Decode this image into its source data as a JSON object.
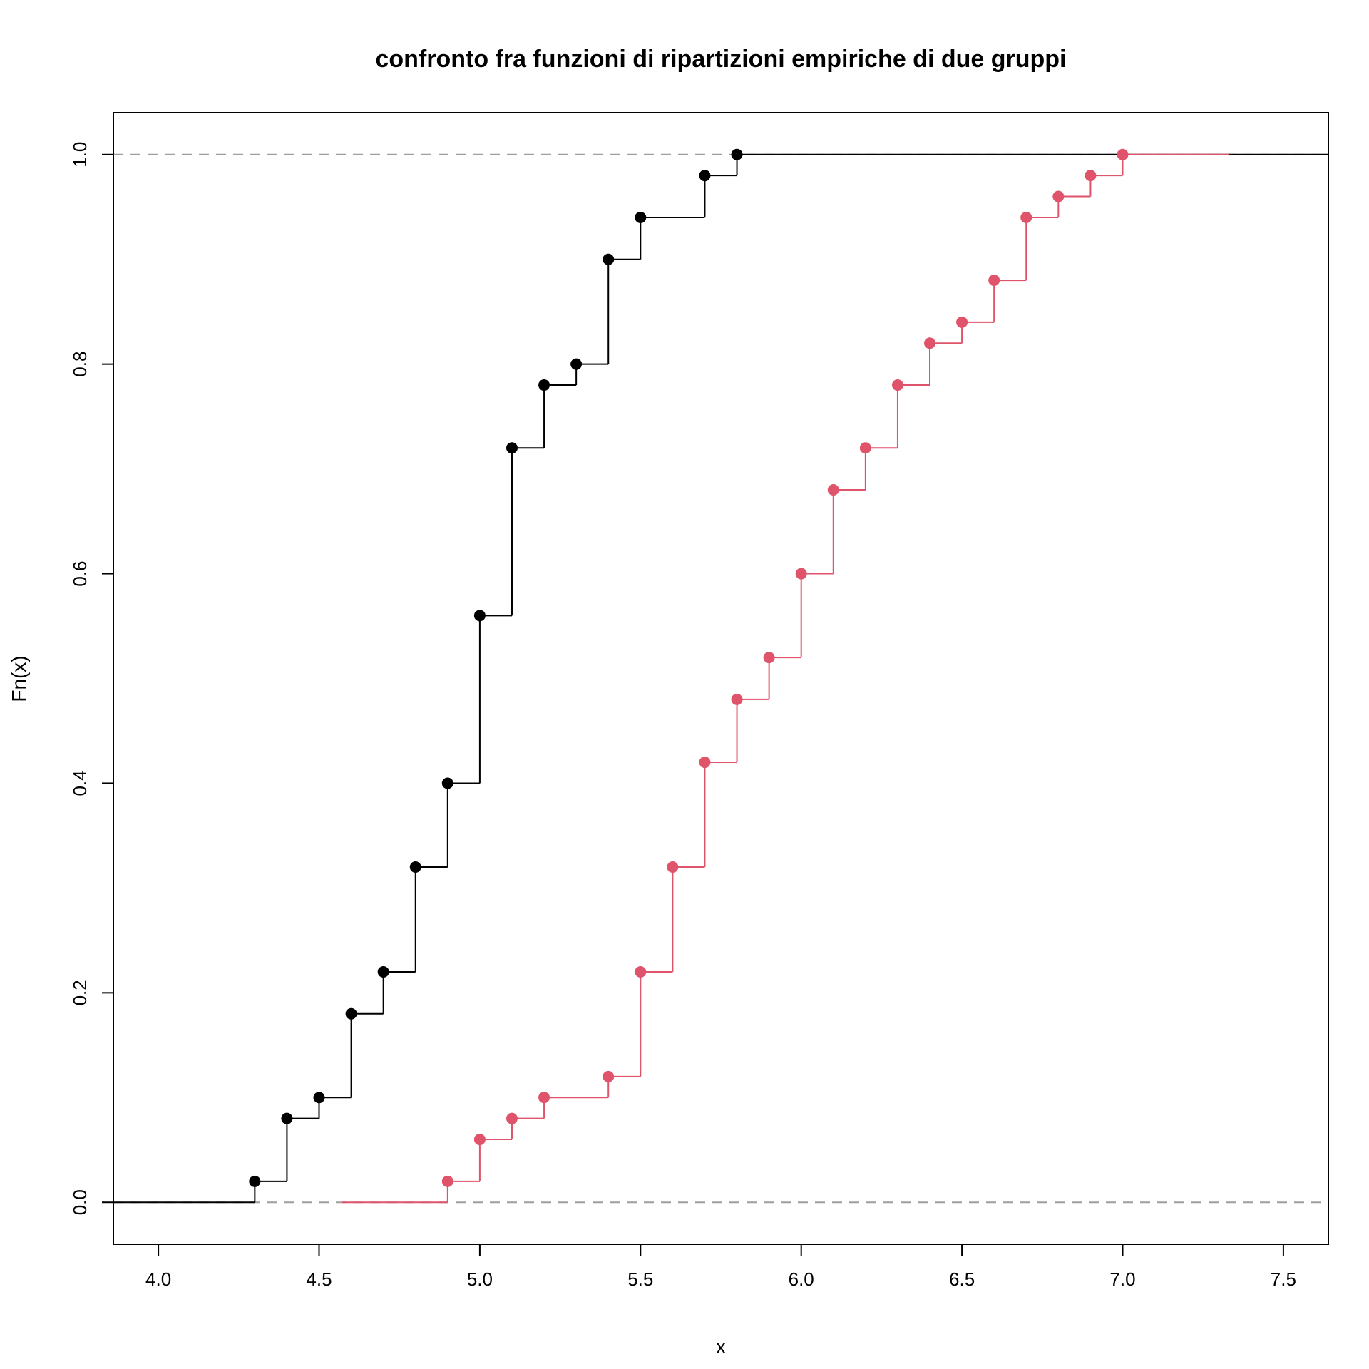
{
  "chart_data": {
    "type": "line",
    "subtype": "empirical-cdf-step",
    "title": "confronto fra funzioni di ripartizioni empiriche di due gruppi",
    "xlabel": "x",
    "ylabel": "Fn(x)",
    "xlim": [
      3.86,
      7.64
    ],
    "ylim": [
      -0.04,
      1.04
    ],
    "x_ticks": [
      "4.0",
      "4.5",
      "5.0",
      "5.5",
      "6.0",
      "6.5",
      "7.0",
      "7.5"
    ],
    "y_ticks": [
      "0.0",
      "0.2",
      "0.4",
      "0.6",
      "0.8",
      "1.0"
    ],
    "reference_lines": [
      0,
      1
    ],
    "grid": false,
    "legend": "none",
    "series": [
      {
        "color": "#000000",
        "x_start": 3.86,
        "x_end": 7.64,
        "x": [
          4.3,
          4.4,
          4.5,
          4.6,
          4.7,
          4.8,
          4.9,
          5.0,
          5.1,
          5.2,
          5.3,
          5.4,
          5.5,
          5.7,
          5.8
        ],
        "y": [
          0.02,
          0.08,
          0.1,
          0.18,
          0.22,
          0.32,
          0.4,
          0.56,
          0.72,
          0.78,
          0.8,
          0.9,
          0.94,
          0.98,
          1.0
        ]
      },
      {
        "color": "#DF536B",
        "x_start": 4.57,
        "x_end": 7.33,
        "x": [
          4.9,
          5.0,
          5.1,
          5.2,
          5.4,
          5.5,
          5.6,
          5.7,
          5.8,
          5.9,
          6.0,
          6.1,
          6.2,
          6.3,
          6.4,
          6.5,
          6.6,
          6.7,
          6.8,
          6.9,
          7.0
        ],
        "y": [
          0.02,
          0.06,
          0.08,
          0.1,
          0.12,
          0.22,
          0.32,
          0.42,
          0.48,
          0.52,
          0.6,
          0.68,
          0.72,
          0.78,
          0.82,
          0.84,
          0.88,
          0.94,
          0.96,
          0.98,
          1.0
        ]
      }
    ]
  }
}
